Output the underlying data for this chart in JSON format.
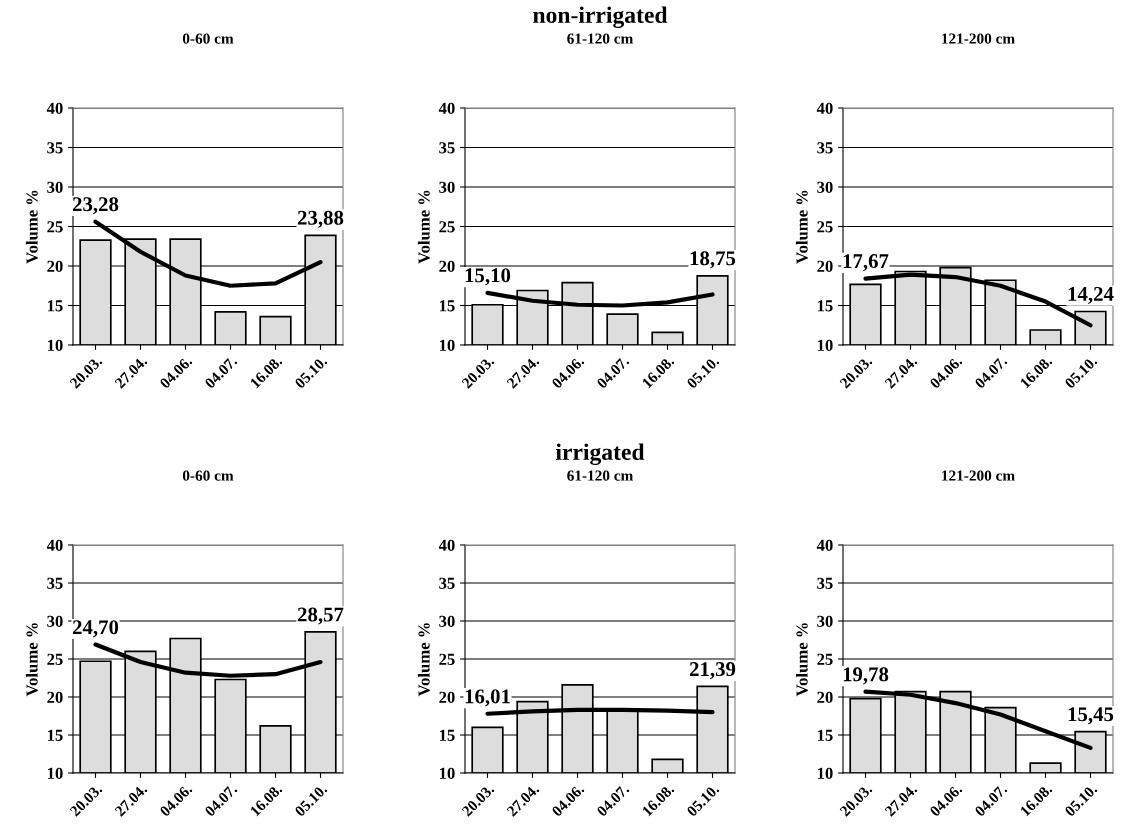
{
  "chart_data": [
    {
      "type": "bar",
      "title": "0-60 cm",
      "ylabel": "Volume %",
      "categories": [
        "20.03.",
        "27.04.",
        "04.06.",
        "04.07.",
        "16.08.",
        "05.10."
      ],
      "ylim": [
        10,
        40
      ],
      "yticks": [
        10,
        15,
        20,
        25,
        30,
        35,
        40
      ],
      "grid": "y",
      "legend": false,
      "series": [
        {
          "color": "#dddddd",
          "values": [
            23.28,
            23.4,
            23.4,
            14.2,
            13.6,
            23.88
          ],
          "value_labels": [
            "23,28",
            null,
            null,
            null,
            null,
            "23,88"
          ]
        },
        {
          "type": "line",
          "color": "#000000",
          "values": [
            25.6,
            21.8,
            18.8,
            17.5,
            17.8,
            20.5
          ]
        }
      ]
    },
    {
      "type": "bar",
      "title": "non-irrigated",
      "subtitle": "61-120 cm",
      "ylabel": "Volume %",
      "categories": [
        "20.03.",
        "27.04.",
        "04.06.",
        "04.07.",
        "16.08.",
        "05.10."
      ],
      "ylim": [
        10,
        40
      ],
      "yticks": [
        10,
        15,
        20,
        25,
        30,
        35,
        40
      ],
      "grid": "y",
      "legend": false,
      "series": [
        {
          "color": "#dddddd",
          "values": [
            15.1,
            16.9,
            17.9,
            13.9,
            11.6,
            18.75
          ],
          "value_labels": [
            "15,10",
            null,
            null,
            null,
            null,
            "18,75"
          ]
        },
        {
          "type": "line",
          "color": "#000000",
          "values": [
            16.6,
            15.6,
            15.1,
            15.0,
            15.4,
            16.4
          ]
        }
      ]
    },
    {
      "type": "bar",
      "title": "121-200 cm",
      "ylabel": "Volume %",
      "categories": [
        "20.03.",
        "27.04.",
        "04.06.",
        "04.07.",
        "16.08.",
        "05.10."
      ],
      "ylim": [
        10,
        40
      ],
      "yticks": [
        10,
        15,
        20,
        25,
        30,
        35,
        40
      ],
      "grid": "y",
      "legend": false,
      "series": [
        {
          "color": "#dddddd",
          "values": [
            17.67,
            19.3,
            19.8,
            18.2,
            11.9,
            14.24
          ],
          "value_labels": [
            "17,67",
            null,
            null,
            null,
            null,
            "14,24"
          ]
        },
        {
          "type": "line",
          "color": "#000000",
          "values": [
            18.4,
            18.9,
            18.6,
            17.5,
            15.5,
            12.5
          ]
        }
      ]
    },
    {
      "type": "bar",
      "title": "0-60 cm",
      "ylabel": "Volume %",
      "categories": [
        "20.03.",
        "27.04.",
        "04.06.",
        "04.07.",
        "16.08.",
        "05.10."
      ],
      "ylim": [
        10,
        40
      ],
      "yticks": [
        10,
        15,
        20,
        25,
        30,
        35,
        40
      ],
      "grid": "y",
      "legend": false,
      "series": [
        {
          "color": "#dddddd",
          "values": [
            24.7,
            26.0,
            27.7,
            22.3,
            16.2,
            28.57
          ],
          "value_labels": [
            "24,70",
            null,
            null,
            null,
            null,
            "28,57"
          ]
        },
        {
          "type": "line",
          "color": "#000000",
          "values": [
            26.9,
            24.6,
            23.2,
            22.8,
            23.0,
            24.6
          ]
        }
      ]
    },
    {
      "type": "bar",
      "title": "irrigated",
      "subtitle": "61-120 cm",
      "ylabel": "Volume %",
      "categories": [
        "20.03.",
        "27.04.",
        "04.06.",
        "04.07.",
        "16.08.",
        "05.10."
      ],
      "ylim": [
        10,
        40
      ],
      "yticks": [
        10,
        15,
        20,
        25,
        30,
        35,
        40
      ],
      "grid": "y",
      "legend": false,
      "series": [
        {
          "color": "#dddddd",
          "values": [
            16.01,
            19.4,
            21.6,
            18.3,
            11.8,
            21.39
          ],
          "value_labels": [
            "16,01",
            null,
            null,
            null,
            null,
            "21,39"
          ]
        },
        {
          "type": "line",
          "color": "#000000",
          "values": [
            17.8,
            18.1,
            18.3,
            18.3,
            18.2,
            18.0
          ]
        }
      ]
    },
    {
      "type": "bar",
      "title": "121-200 cm",
      "ylabel": "Volume %",
      "categories": [
        "20.03.",
        "27.04.",
        "04.06.",
        "04.07.",
        "16.08.",
        "05.10."
      ],
      "ylim": [
        10,
        40
      ],
      "yticks": [
        10,
        15,
        20,
        25,
        30,
        35,
        40
      ],
      "grid": "y",
      "legend": false,
      "series": [
        {
          "color": "#dddddd",
          "values": [
            19.78,
            20.7,
            20.7,
            18.6,
            11.3,
            15.45
          ],
          "value_labels": [
            "19,78",
            null,
            null,
            null,
            null,
            "15,45"
          ]
        },
        {
          "type": "line",
          "color": "#000000",
          "values": [
            20.7,
            20.3,
            19.2,
            17.7,
            15.5,
            13.3
          ]
        }
      ]
    }
  ]
}
